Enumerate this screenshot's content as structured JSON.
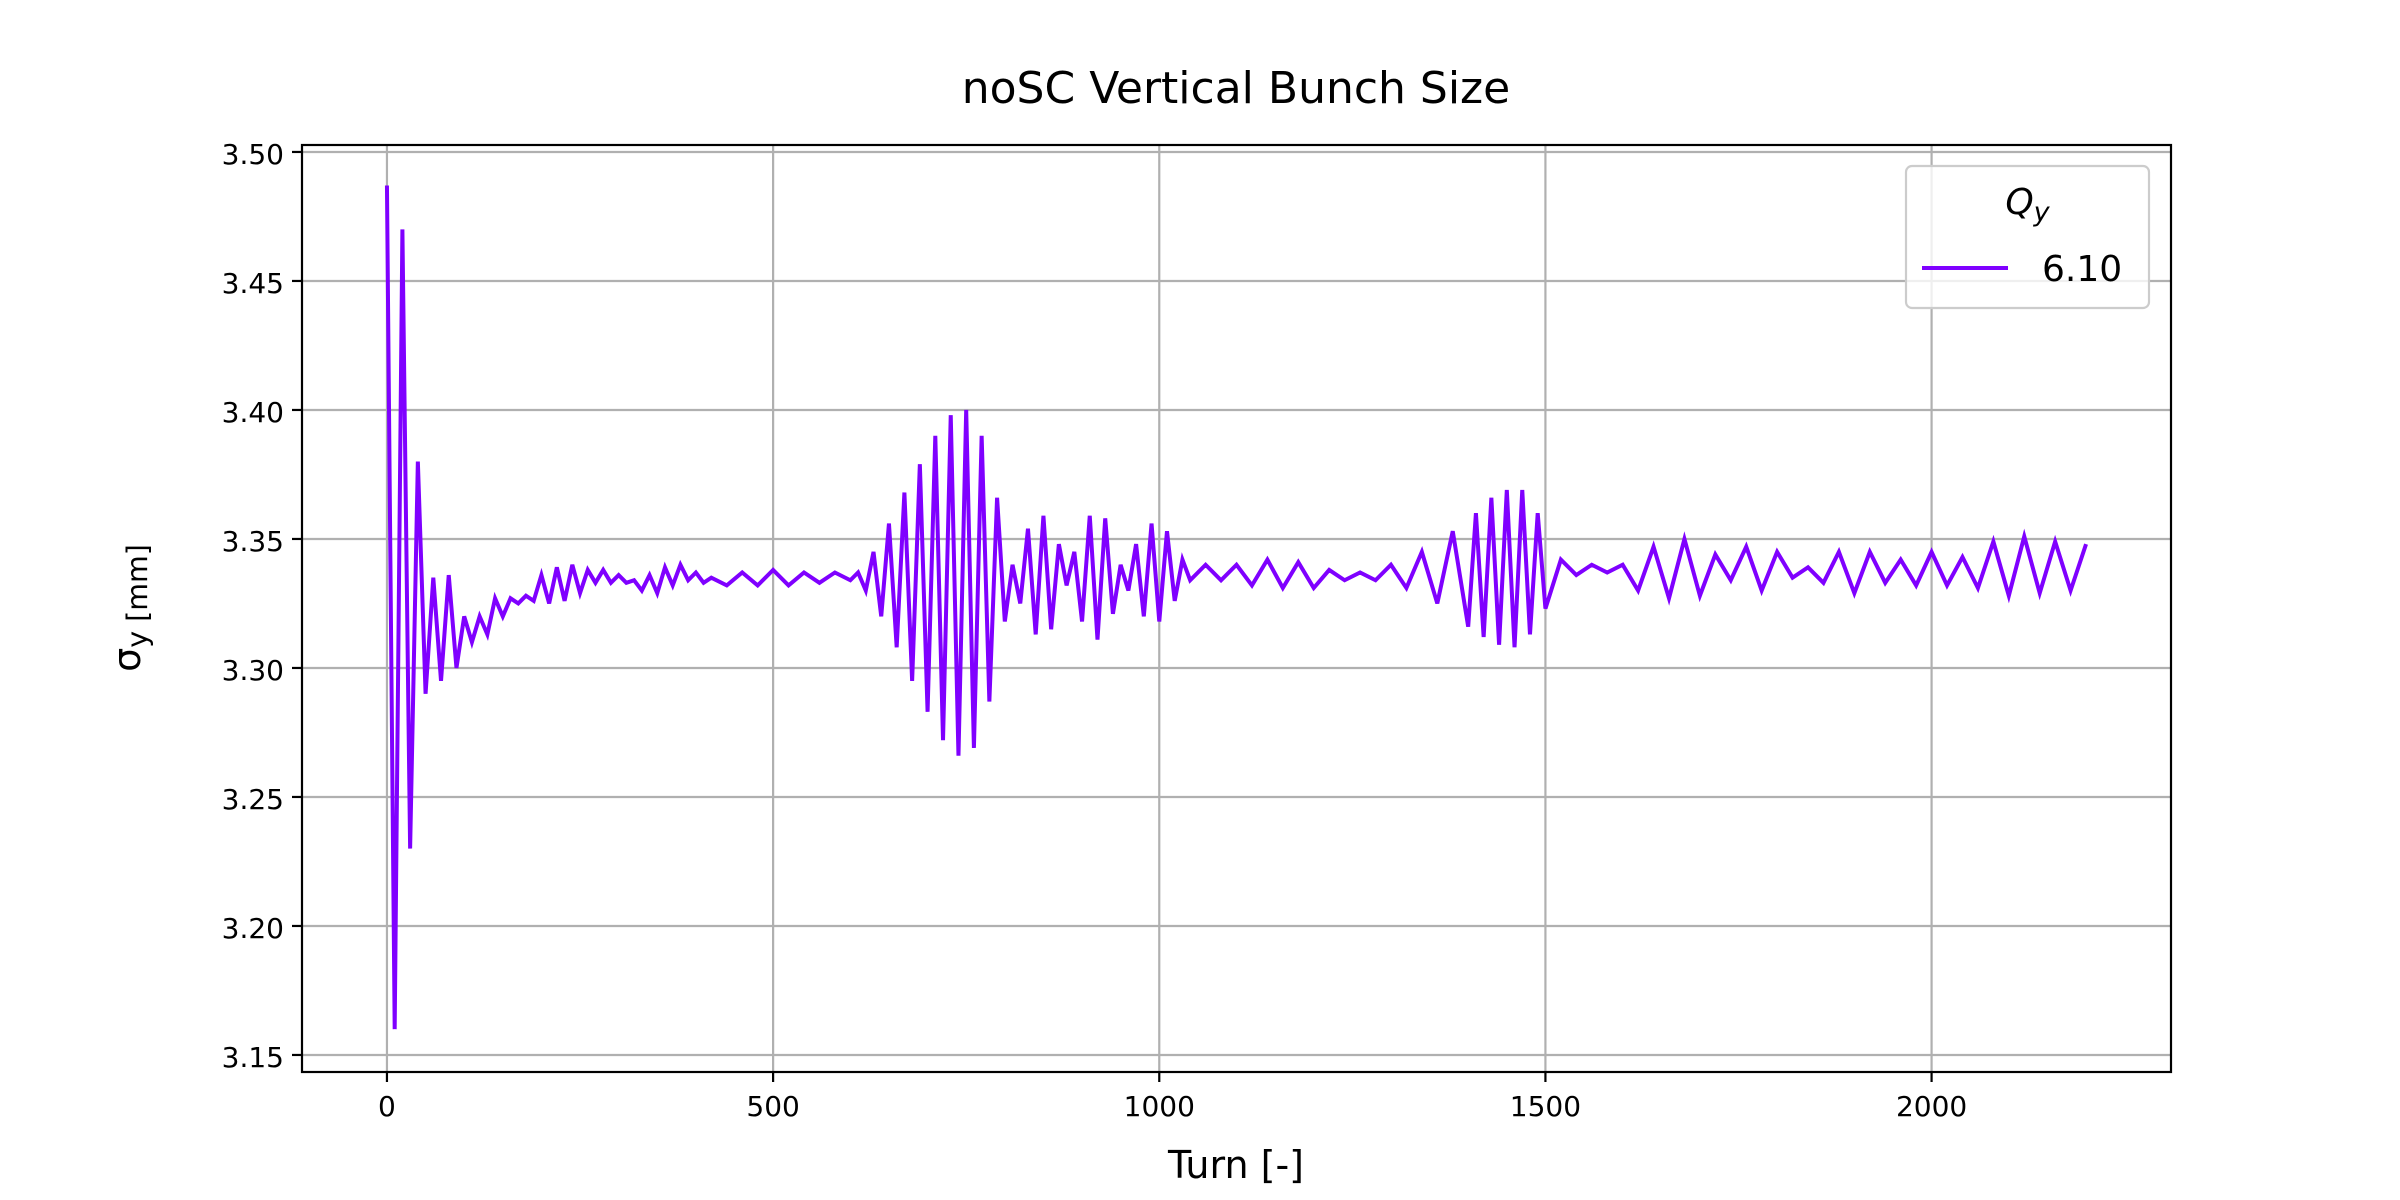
{
  "chart_data": {
    "type": "line",
    "title": "noSC Vertical Bunch Size",
    "x_label": "Turn [-]",
    "y_label": "σ_y [mm]",
    "legend_title": "Q_y",
    "legend": "upper right",
    "grid": true,
    "xlim": [
      -110,
      2310
    ],
    "ylim": [
      3.1434,
      3.5027
    ],
    "xticks": [
      0,
      500,
      1000,
      1500,
      2000
    ],
    "yticks": [
      3.15,
      {
        "value": 3.2,
        "label": "3.20"
      },
      3.25,
      {
        "value": 3.3,
        "label": "3.30"
      },
      3.35,
      {
        "value": 3.4,
        "label": "3.40"
      },
      3.45,
      {
        "value": 3.5,
        "label": "3.50"
      }
    ],
    "x": [
      0,
      10,
      20,
      30,
      40,
      50,
      60,
      70,
      80,
      90,
      100,
      110,
      120,
      130,
      140,
      150,
      160,
      170,
      180,
      190,
      200,
      210,
      220,
      230,
      240,
      250,
      260,
      270,
      280,
      290,
      300,
      310,
      320,
      330,
      340,
      350,
      360,
      370,
      380,
      390,
      400,
      410,
      420,
      440,
      460,
      480,
      500,
      520,
      540,
      560,
      580,
      600,
      610,
      620,
      630,
      640,
      650,
      660,
      670,
      680,
      690,
      700,
      710,
      720,
      730,
      740,
      750,
      760,
      770,
      780,
      790,
      800,
      810,
      820,
      830,
      840,
      850,
      860,
      870,
      880,
      890,
      900,
      910,
      920,
      930,
      940,
      950,
      960,
      970,
      980,
      990,
      1000,
      1010,
      1020,
      1030,
      1040,
      1060,
      1080,
      1100,
      1120,
      1140,
      1160,
      1180,
      1200,
      1220,
      1240,
      1260,
      1280,
      1300,
      1320,
      1340,
      1360,
      1380,
      1400,
      1410,
      1420,
      1430,
      1440,
      1450,
      1460,
      1470,
      1480,
      1490,
      1500,
      1520,
      1540,
      1560,
      1580,
      1600,
      1620,
      1640,
      1660,
      1680,
      1700,
      1720,
      1740,
      1760,
      1780,
      1800,
      1820,
      1840,
      1860,
      1880,
      1900,
      1920,
      1940,
      1960,
      1980,
      2000,
      2020,
      2040,
      2060,
      2080,
      2100,
      2120,
      2140,
      2160,
      2180,
      2200
    ],
    "series": [
      {
        "name": "6.10",
        "color": "#7f00ff",
        "values": [
          3.487,
          3.16,
          3.47,
          3.23,
          3.38,
          3.29,
          3.335,
          3.295,
          3.336,
          3.3,
          3.32,
          3.31,
          3.32,
          3.313,
          3.327,
          3.32,
          3.327,
          3.325,
          3.328,
          3.326,
          3.336,
          3.325,
          3.339,
          3.326,
          3.34,
          3.329,
          3.338,
          3.333,
          3.338,
          3.333,
          3.336,
          3.333,
          3.334,
          3.33,
          3.336,
          3.329,
          3.339,
          3.332,
          3.34,
          3.334,
          3.337,
          3.333,
          3.335,
          3.332,
          3.337,
          3.332,
          3.338,
          3.332,
          3.337,
          3.333,
          3.337,
          3.334,
          3.337,
          3.33,
          3.345,
          3.32,
          3.356,
          3.308,
          3.368,
          3.295,
          3.379,
          3.283,
          3.39,
          3.272,
          3.398,
          3.266,
          3.4,
          3.269,
          3.39,
          3.287,
          3.366,
          3.318,
          3.34,
          3.325,
          3.354,
          3.313,
          3.359,
          3.315,
          3.348,
          3.332,
          3.345,
          3.318,
          3.359,
          3.311,
          3.358,
          3.321,
          3.34,
          3.33,
          3.348,
          3.32,
          3.356,
          3.318,
          3.353,
          3.326,
          3.342,
          3.334,
          3.34,
          3.334,
          3.34,
          3.332,
          3.342,
          3.331,
          3.341,
          3.331,
          3.338,
          3.334,
          3.337,
          3.334,
          3.34,
          3.331,
          3.345,
          3.325,
          3.353,
          3.316,
          3.36,
          3.312,
          3.366,
          3.309,
          3.369,
          3.308,
          3.369,
          3.313,
          3.36,
          3.323,
          3.342,
          3.336,
          3.34,
          3.337,
          3.34,
          3.33,
          3.347,
          3.327,
          3.35,
          3.328,
          3.344,
          3.334,
          3.347,
          3.33,
          3.345,
          3.335,
          3.339,
          3.333,
          3.345,
          3.329,
          3.345,
          3.333,
          3.342,
          3.332,
          3.345,
          3.332,
          3.343,
          3.331,
          3.349,
          3.328,
          3.351,
          3.329,
          3.349,
          3.33,
          3.348
        ]
      }
    ]
  }
}
